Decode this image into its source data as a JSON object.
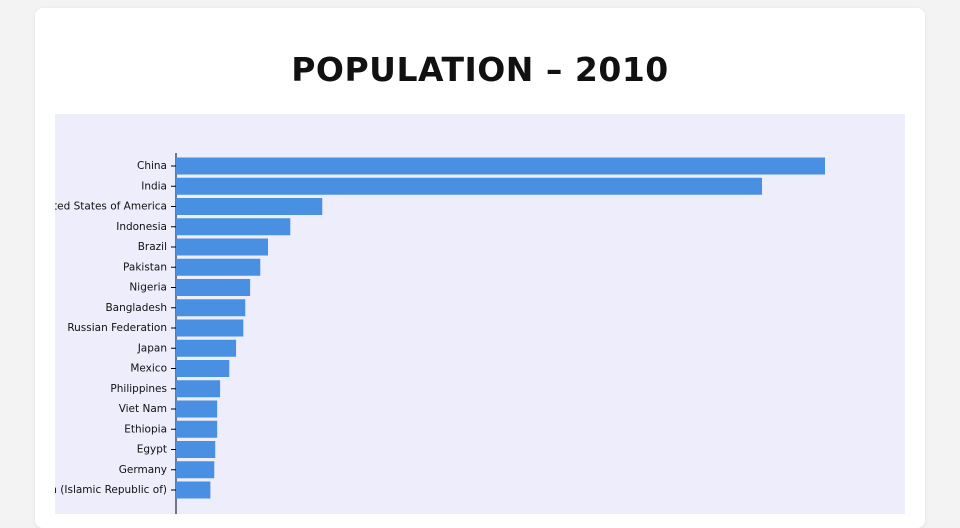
{
  "chart_data": {
    "type": "bar",
    "orientation": "horizontal",
    "title": "POPULATION – 2010",
    "categories": [
      "China",
      "India",
      "United States of America",
      "Indonesia",
      "Brazil",
      "Pakistan",
      "Nigeria",
      "Bangladesh",
      "Russian Federation",
      "Japan",
      "Mexico",
      "Philippines",
      "Viet Nam",
      "Ethiopia",
      "Egypt",
      "Germany",
      "Iran (Islamic Republic of)"
    ],
    "values": [
      1340000000,
      1210000000,
      302000000,
      236000000,
      190000000,
      174000000,
      153000000,
      143000000,
      139000000,
      124000000,
      110000000,
      91000000,
      85000000,
      85000000,
      81000000,
      79000000,
      71000000
    ],
    "color": "#4a90e2"
  }
}
